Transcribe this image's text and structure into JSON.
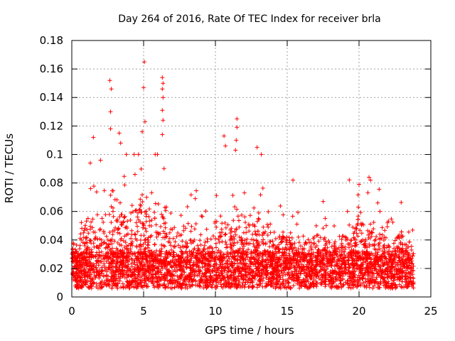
{
  "chart_data": {
    "type": "scatter",
    "title": "Day 264 of 2016, Rate Of TEC Index for receiver brla",
    "xlabel": "GPS time / hours",
    "ylabel": "ROTI / TECUs",
    "xlim": [
      0,
      25
    ],
    "ylim": [
      0,
      0.18
    ],
    "xticks": [
      0,
      5,
      10,
      15,
      20,
      25
    ],
    "yticks": [
      0,
      0.02,
      0.04,
      0.06,
      0.08,
      0.1,
      0.12,
      0.14,
      0.16,
      0.18
    ],
    "xtick_labels": [
      "0",
      "5",
      "10",
      "15",
      "20",
      "25"
    ],
    "ytick_labels": [
      "0",
      "0.02",
      "0.04",
      "0.06",
      "0.08",
      "0.1",
      "0.12",
      "0.14",
      "0.16",
      "0.18"
    ],
    "grid": true,
    "marker": "+",
    "color": "#ff0000",
    "data_range_x": [
      0,
      23.8
    ],
    "series": [
      {
        "name": "ROTI",
        "description": "dense band of points mostly between 0.005 and 0.04 TECU/min across the day",
        "peaks": [
          {
            "x": 1.5,
            "y": 0.112
          },
          {
            "x": 2.0,
            "y": 0.096
          },
          {
            "x": 2.65,
            "y": 0.152
          },
          {
            "x": 2.75,
            "y": 0.146
          },
          {
            "x": 2.7,
            "y": 0.13
          },
          {
            "x": 2.7,
            "y": 0.118
          },
          {
            "x": 3.3,
            "y": 0.115
          },
          {
            "x": 3.4,
            "y": 0.108
          },
          {
            "x": 4.4,
            "y": 0.086
          },
          {
            "x": 4.9,
            "y": 0.116
          },
          {
            "x": 5.05,
            "y": 0.165
          },
          {
            "x": 5.0,
            "y": 0.147
          },
          {
            "x": 5.1,
            "y": 0.123
          },
          {
            "x": 6.3,
            "y": 0.154
          },
          {
            "x": 6.35,
            "y": 0.15
          },
          {
            "x": 6.3,
            "y": 0.146
          },
          {
            "x": 6.35,
            "y": 0.14
          },
          {
            "x": 6.3,
            "y": 0.131
          },
          {
            "x": 6.35,
            "y": 0.124
          },
          {
            "x": 6.3,
            "y": 0.114
          },
          {
            "x": 8.6,
            "y": 0.069
          },
          {
            "x": 10.6,
            "y": 0.113
          },
          {
            "x": 10.7,
            "y": 0.106
          },
          {
            "x": 11.5,
            "y": 0.125
          },
          {
            "x": 11.5,
            "y": 0.119
          },
          {
            "x": 11.45,
            "y": 0.11
          },
          {
            "x": 11.4,
            "y": 0.103
          },
          {
            "x": 12.9,
            "y": 0.105
          },
          {
            "x": 13.2,
            "y": 0.1
          },
          {
            "x": 15.4,
            "y": 0.082
          },
          {
            "x": 17.5,
            "y": 0.067
          },
          {
            "x": 20.0,
            "y": 0.079
          },
          {
            "x": 20.7,
            "y": 0.084
          },
          {
            "x": 20.8,
            "y": 0.082
          },
          {
            "x": 21.3,
            "y": 0.066
          }
        ]
      }
    ]
  }
}
